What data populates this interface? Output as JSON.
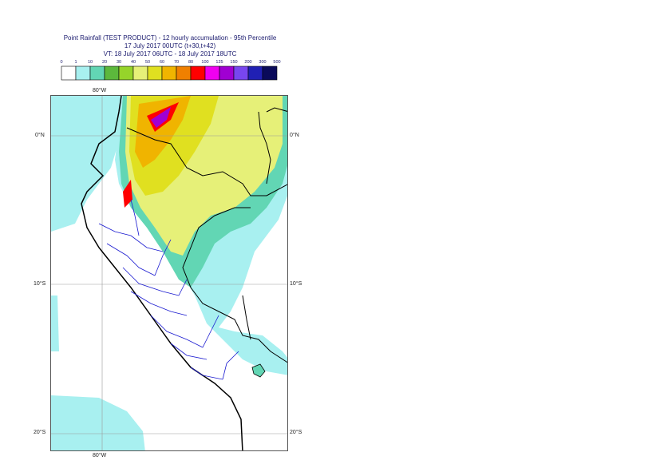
{
  "title": {
    "line1": "Point Rainfall (TEST PRODUCT) - 12 hourly accumulation - 95th Percentile",
    "line2": "17 July 2017 00UTC (t+30,t+42)",
    "line3": "VT: 18 July 2017 06UTC - 18 July 2017 18UTC"
  },
  "legend": {
    "thresholds": [
      "0",
      "1",
      "10",
      "20",
      "30",
      "40",
      "50",
      "60",
      "70",
      "80",
      "100",
      "125",
      "150",
      "200",
      "300",
      "500"
    ],
    "colors": [
      "#ffffff",
      "#a8f0f0",
      "#62d6b4",
      "#5cb83c",
      "#96d42a",
      "#e6f078",
      "#e0e020",
      "#f0b400",
      "#f08000",
      "#ff0000",
      "#f000f0",
      "#a000d2",
      "#7846f0",
      "#2020b4",
      "#0a0a5a"
    ]
  },
  "map": {
    "lon_labels": {
      "top": "80°W",
      "bottom": "80°W"
    },
    "lat_labels": [
      "0°N",
      "10°S",
      "20°S"
    ]
  }
}
